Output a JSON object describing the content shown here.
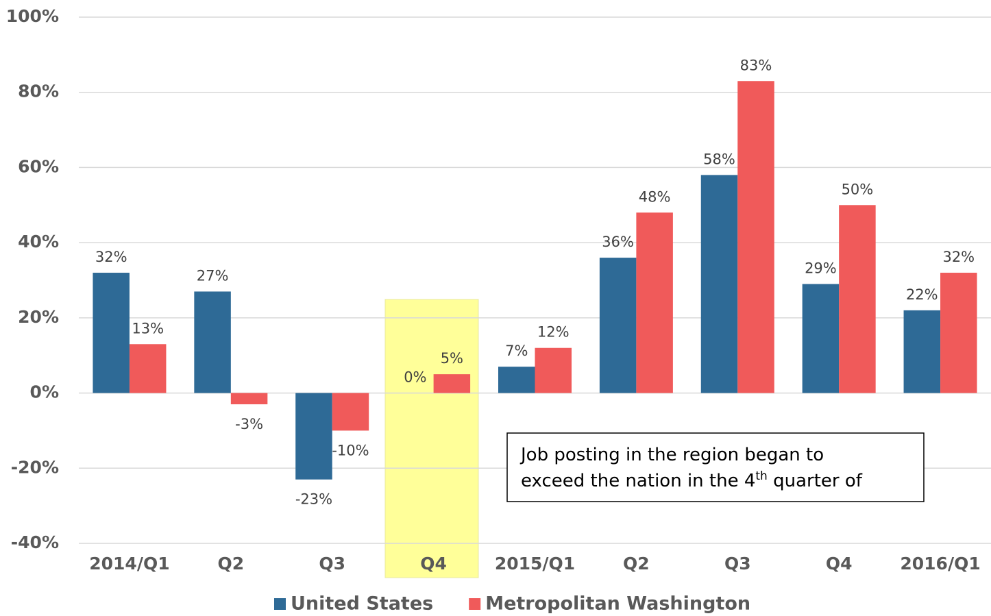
{
  "chart_data": {
    "type": "bar",
    "categories": [
      "2014/Q1",
      "Q2",
      "Q3",
      "Q4",
      "2015/Q1",
      "Q2",
      "Q3",
      "Q4",
      "2016/Q1"
    ],
    "series": [
      {
        "name": "United States",
        "color": "#2e6a96",
        "values": [
          32,
          27,
          -23,
          0,
          7,
          36,
          58,
          29,
          22
        ],
        "value_labels": [
          "32%",
          "27%",
          "-23%",
          "0%",
          "7%",
          "36%",
          "58%",
          "29%",
          "22%"
        ]
      },
      {
        "name": "Metropolitan Washington",
        "color": "#f05a5a",
        "values": [
          13,
          -3,
          -10,
          5,
          12,
          48,
          83,
          50,
          32
        ],
        "value_labels": [
          "13%",
          "-3%",
          "-10%",
          "5%",
          "12%",
          "48%",
          "83%",
          "50%",
          "32%"
        ]
      }
    ],
    "ylim": [
      -40,
      100
    ],
    "yticks": [
      {
        "value": -40,
        "label": "-40%"
      },
      {
        "value": -20,
        "label": "-20%"
      },
      {
        "value": 0,
        "label": "0%"
      },
      {
        "value": 20,
        "label": "20%"
      },
      {
        "value": 40,
        "label": "40%"
      },
      {
        "value": 60,
        "label": "60%"
      },
      {
        "value": 80,
        "label": "80%"
      },
      {
        "value": 100,
        "label": "100%"
      }
    ],
    "grid": true,
    "legend": "bottom",
    "annotation": [
      "Job posting in the region began to",
      "exceed the nation in the 4",
      "th",
      " quarter of"
    ]
  }
}
